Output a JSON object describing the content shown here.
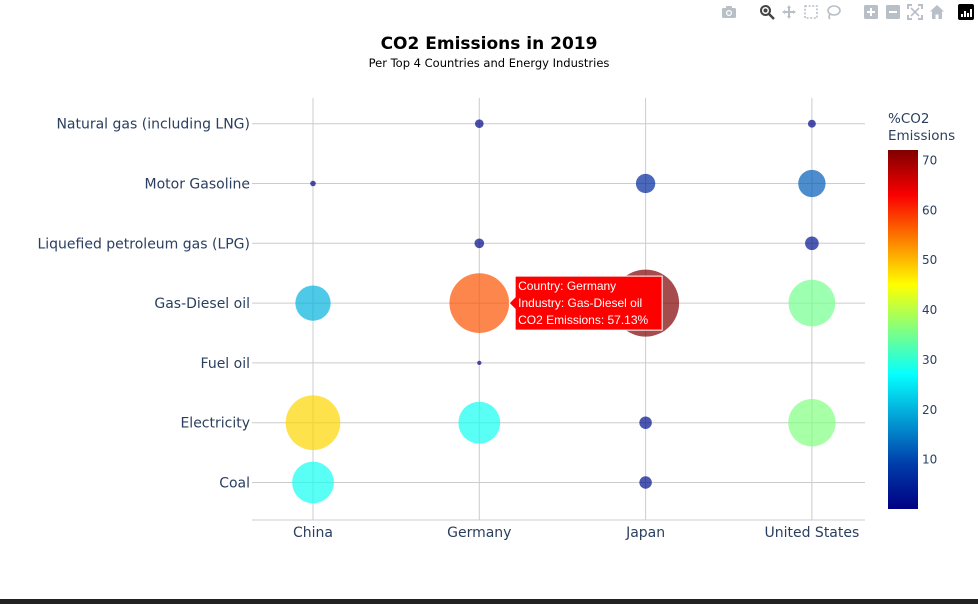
{
  "toolbar": {
    "buttons": [
      {
        "icon": "camera-icon",
        "label": "Download plot as a png"
      },
      {
        "icon": "zoom-icon",
        "label": "Zoom"
      },
      {
        "icon": "pan-icon",
        "label": "Pan"
      },
      {
        "icon": "box-select-icon",
        "label": "Box Select"
      },
      {
        "icon": "lasso-select-icon",
        "label": "Lasso Select"
      },
      {
        "icon": "zoom-in-icon",
        "label": "Zoom in"
      },
      {
        "icon": "zoom-out-icon",
        "label": "Zoom out"
      },
      {
        "icon": "autoscale-icon",
        "label": "Autoscale"
      },
      {
        "icon": "reset-axes-icon",
        "label": "Reset axes"
      },
      {
        "icon": "plotly-logo-icon",
        "label": "Produced with Plotly"
      }
    ]
  },
  "chart_data": {
    "type": "scatter",
    "title": "CO2 Emissions in 2019",
    "subtitle": "Per Top 4 Countries and Energy Industries",
    "xlabel": "",
    "ylabel": "",
    "x_categories": [
      "China",
      "Germany",
      "Japan",
      "United States"
    ],
    "y_categories": [
      "Coal",
      "Electricity",
      "Fuel oil",
      "Gas-Diesel oil",
      "Liquefied petroleum gas (LPG)",
      "Motor Gasoline",
      "Natural gas (including LNG)"
    ],
    "grid": true,
    "colorscale": "Jet",
    "colorbar": {
      "title_lines": [
        "%CO2",
        "Emissions"
      ],
      "range": [
        0,
        72
      ],
      "ticks": [
        10,
        20,
        30,
        40,
        50,
        60,
        70
      ]
    },
    "points": [
      {
        "country": "China",
        "industry": "Coal",
        "value": 28
      },
      {
        "country": "China",
        "industry": "Electricity",
        "value": 48
      },
      {
        "country": "China",
        "industry": "Gas-Diesel oil",
        "value": 20
      },
      {
        "country": "China",
        "industry": "Motor Gasoline",
        "value": 0.5
      },
      {
        "country": "Germany",
        "industry": "Electricity",
        "value": 28
      },
      {
        "country": "Germany",
        "industry": "Fuel oil",
        "value": 0.3
      },
      {
        "country": "Germany",
        "industry": "Gas-Diesel oil",
        "value": 57.13
      },
      {
        "country": "Germany",
        "industry": "Liquefied petroleum gas (LPG)",
        "value": 1.5
      },
      {
        "country": "Germany",
        "industry": "Natural gas (including LNG)",
        "value": 1.2
      },
      {
        "country": "Japan",
        "industry": "Coal",
        "value": 2.5
      },
      {
        "country": "Japan",
        "industry": "Electricity",
        "value": 2.5
      },
      {
        "country": "Japan",
        "industry": "Gas-Diesel oil",
        "value": 72
      },
      {
        "country": "Japan",
        "industry": "Motor Gasoline",
        "value": 6
      },
      {
        "country": "United States",
        "industry": "Electricity",
        "value": 36
      },
      {
        "country": "United States",
        "industry": "Gas-Diesel oil",
        "value": 35
      },
      {
        "country": "United States",
        "industry": "Liquefied petroleum gas (LPG)",
        "value": 3
      },
      {
        "country": "United States",
        "industry": "Motor Gasoline",
        "value": 12
      },
      {
        "country": "United States",
        "industry": "Natural gas (including LNG)",
        "value": 1
      }
    ],
    "tooltip": {
      "country": "Germany",
      "industry": "Gas-Diesel oil",
      "lines": [
        "Country: Germany",
        "Industry: Gas-Diesel oil",
        "CO2 Emissions: 57.13%"
      ],
      "background": "#ff0000"
    }
  }
}
